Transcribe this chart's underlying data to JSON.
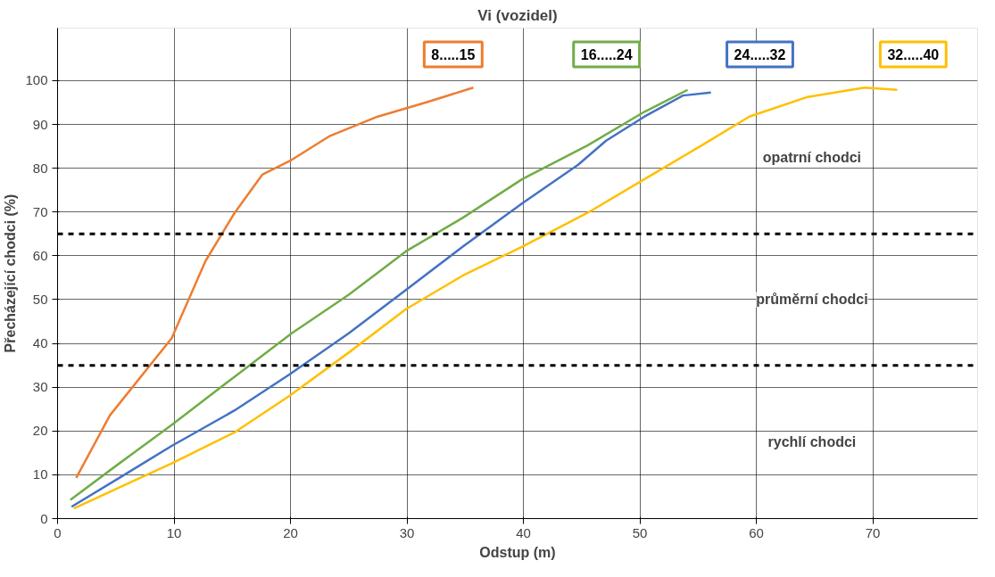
{
  "chart_data": {
    "type": "line",
    "legend_title": "Vi (vozidel)",
    "xlabel": "Odstup (m)",
    "ylabel": "Přecházející chodci (%)",
    "xlim": [
      0,
      79
    ],
    "ylim": [
      0,
      112
    ],
    "xticks": [
      0,
      10,
      20,
      30,
      40,
      50,
      60,
      70
    ],
    "yticks": [
      0,
      10,
      20,
      30,
      40,
      50,
      60,
      70,
      80,
      90,
      100
    ],
    "grid": true,
    "marker": "none",
    "line_style": "solid",
    "series": [
      {
        "name": "8.....15",
        "color": "#ed7d31",
        "x": [
          1.6,
          4.5,
          9.8,
          12.7,
          15.2,
          17.6,
          20.1,
          23.4,
          27.5,
          31.6,
          35.7
        ],
        "values": [
          9.3,
          23.6,
          41.2,
          58.8,
          69.8,
          78.6,
          81.9,
          87.4,
          91.8,
          95,
          98.4
        ]
      },
      {
        "name": "16.....24",
        "color": "#70ad47",
        "x": [
          1.1,
          5.3,
          9.8,
          15.2,
          20.1,
          25,
          29.9,
          34.8,
          39.9,
          45.5,
          50.4,
          54.1
        ],
        "values": [
          4.3,
          12.6,
          21.4,
          32.4,
          42.3,
          51.1,
          61,
          68.7,
          77.5,
          85.2,
          92.9,
          97.9
        ]
      },
      {
        "name": "24.....32",
        "color": "#4472c4",
        "x": [
          1.2,
          5.3,
          9.8,
          15.2,
          19.9,
          25,
          29.9,
          34.8,
          39.9,
          44.7,
          47.1,
          50.4,
          53.7,
          56.1
        ],
        "values": [
          2.7,
          9.3,
          16.6,
          24.7,
          32.9,
          42.3,
          52.2,
          62.1,
          72,
          80.8,
          86.3,
          91.8,
          96.6,
          97.3
        ]
      },
      {
        "name": "32.....40",
        "color": "#ffc000",
        "x": [
          1.4,
          5.3,
          9.8,
          15.2,
          19.9,
          25,
          29.9,
          34.8,
          39.9,
          45.5,
          50.4,
          55.3,
          59.4,
          64.3,
          69.3,
          72.1
        ],
        "values": [
          2.3,
          7.1,
          12.6,
          19.7,
          28,
          37.9,
          47.8,
          55.5,
          62.1,
          69.8,
          77.5,
          85.2,
          91.8,
          96.2,
          98.4,
          97.9
        ]
      }
    ],
    "ref_lines": [
      {
        "axis": "y",
        "value": 65,
        "color": "#000000",
        "line_style": "dashed"
      },
      {
        "axis": "y",
        "value": 35,
        "color": "#000000",
        "line_style": "dashed"
      }
    ],
    "annotations": [
      "opatrní chodci",
      "průměrní chodci",
      "rychlí chodci"
    ]
  }
}
